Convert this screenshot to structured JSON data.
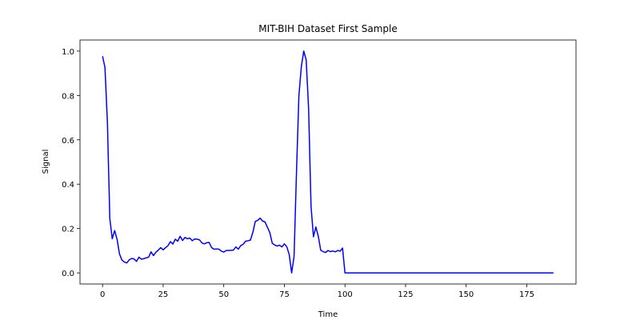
{
  "chart_data": {
    "type": "line",
    "title": "MIT-BIH Dataset First Sample",
    "xlabel": "Time",
    "ylabel": "Signal",
    "xlim": [
      -9.3,
      195.3
    ],
    "ylim": [
      -0.05,
      1.05
    ],
    "xticks": [
      0,
      25,
      50,
      75,
      100,
      125,
      150,
      175
    ],
    "yticks": [
      0.0,
      0.2,
      0.4,
      0.6,
      0.8,
      1.0
    ],
    "ytick_labels": [
      "0.0",
      "0.2",
      "0.4",
      "0.6",
      "0.8",
      "1.0"
    ],
    "grid": false,
    "series": [
      {
        "color": "#0000ff",
        "x": [
          0,
          1,
          2,
          3,
          4,
          5,
          6,
          7,
          8,
          9,
          10,
          11,
          12,
          13,
          14,
          15,
          16,
          17,
          18,
          19,
          20,
          21,
          22,
          23,
          24,
          25,
          26,
          27,
          28,
          29,
          30,
          31,
          32,
          33,
          34,
          35,
          36,
          37,
          38,
          39,
          40,
          41,
          42,
          43,
          44,
          45,
          46,
          47,
          48,
          49,
          50,
          51,
          52,
          53,
          54,
          55,
          56,
          57,
          58,
          59,
          60,
          61,
          62,
          63,
          64,
          65,
          66,
          67,
          68,
          69,
          70,
          71,
          72,
          73,
          74,
          75,
          76,
          77,
          78,
          79,
          80,
          81,
          82,
          83,
          84,
          85,
          86,
          87,
          88,
          89,
          90,
          91,
          92,
          93,
          94,
          95,
          96,
          97,
          98,
          99,
          100,
          101,
          186
        ],
        "y": [
          0.977,
          0.926,
          0.681,
          0.245,
          0.154,
          0.191,
          0.151,
          0.085,
          0.058,
          0.049,
          0.045,
          0.059,
          0.065,
          0.063,
          0.052,
          0.071,
          0.062,
          0.064,
          0.068,
          0.071,
          0.095,
          0.078,
          0.093,
          0.103,
          0.114,
          0.104,
          0.114,
          0.123,
          0.141,
          0.13,
          0.152,
          0.143,
          0.165,
          0.146,
          0.16,
          0.154,
          0.157,
          0.145,
          0.153,
          0.152,
          0.149,
          0.135,
          0.131,
          0.136,
          0.137,
          0.114,
          0.107,
          0.108,
          0.107,
          0.098,
          0.094,
          0.101,
          0.101,
          0.102,
          0.103,
          0.117,
          0.107,
          0.123,
          0.129,
          0.143,
          0.145,
          0.148,
          0.183,
          0.232,
          0.237,
          0.247,
          0.234,
          0.23,
          0.206,
          0.182,
          0.134,
          0.126,
          0.121,
          0.125,
          0.117,
          0.131,
          0.118,
          0.083,
          0.0,
          0.074,
          0.454,
          0.8,
          0.93,
          1.0,
          0.96,
          0.74,
          0.3,
          0.163,
          0.207,
          0.165,
          0.102,
          0.096,
          0.092,
          0.101,
          0.096,
          0.099,
          0.095,
          0.101,
          0.098,
          0.112,
          0.0,
          0.0,
          0.0
        ]
      }
    ]
  }
}
